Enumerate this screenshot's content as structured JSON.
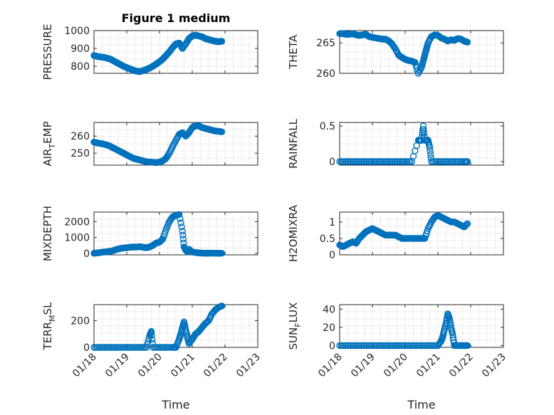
{
  "chart_data": [
    {
      "type": "scatter",
      "title": "Figure 1 medium",
      "ylabel": "PRESSURE",
      "xlabel": "",
      "xlim": [
        0,
        5
      ],
      "ylim": [
        760,
        1000
      ],
      "yticks": [
        800,
        900,
        1000
      ],
      "color": "#0072BD",
      "x": [
        0.0,
        0.1,
        0.2,
        0.3,
        0.4,
        0.5,
        0.6,
        0.7,
        0.8,
        0.9,
        1.0,
        1.1,
        1.2,
        1.3,
        1.4,
        1.5,
        1.6,
        1.7,
        1.8,
        1.9,
        2.0,
        2.1,
        2.2,
        2.3,
        2.4,
        2.5,
        2.6,
        2.7,
        2.8,
        2.9,
        3.0,
        3.1,
        3.2,
        3.3,
        3.4,
        3.5,
        3.6,
        3.7,
        3.8,
        3.9
      ],
      "y": [
        860,
        855,
        852,
        850,
        845,
        840,
        830,
        820,
        810,
        800,
        792,
        785,
        777,
        772,
        770,
        775,
        782,
        790,
        800,
        812,
        825,
        840,
        860,
        880,
        905,
        925,
        930,
        900,
        925,
        955,
        970,
        975,
        970,
        965,
        955,
        950,
        945,
        940,
        938,
        940
      ]
    },
    {
      "type": "scatter",
      "title": "",
      "ylabel": "THETA",
      "xlabel": "",
      "xlim": [
        0,
        5
      ],
      "ylim": [
        260,
        267
      ],
      "yticks": [
        260,
        265
      ],
      "color": "#0072BD",
      "x": [
        0.0,
        0.1,
        0.2,
        0.3,
        0.4,
        0.5,
        0.6,
        0.7,
        0.8,
        0.9,
        1.0,
        1.1,
        1.2,
        1.3,
        1.4,
        1.5,
        1.6,
        1.7,
        1.8,
        1.9,
        2.0,
        2.1,
        2.2,
        2.3,
        2.4,
        2.5,
        2.55,
        2.6,
        2.65,
        2.7,
        2.8,
        2.9,
        3.0,
        3.1,
        3.2,
        3.3,
        3.4,
        3.5,
        3.6,
        3.7,
        3.8,
        3.9
      ],
      "y": [
        266.5,
        266.5,
        266.4,
        266.4,
        266.5,
        266.3,
        266.2,
        266.3,
        266.4,
        266.0,
        265.9,
        265.8,
        265.7,
        265.6,
        265.6,
        265.3,
        264.8,
        264.0,
        263.0,
        262.6,
        262.3,
        262.1,
        262.0,
        261.8,
        260.0,
        261.0,
        262.0,
        263.0,
        264.0,
        265.0,
        266.0,
        266.3,
        266.2,
        265.8,
        265.6,
        265.3,
        265.5,
        265.4,
        265.7,
        265.6,
        265.3,
        265.1
      ]
    },
    {
      "type": "scatter",
      "title": "",
      "ylabel": "AIR_TEMP",
      "xlabel": "",
      "xlim": [
        0,
        5
      ],
      "ylim": [
        243,
        268
      ],
      "yticks": [
        250,
        260
      ],
      "color": "#0072BD",
      "x": [
        0.0,
        0.1,
        0.2,
        0.3,
        0.4,
        0.5,
        0.6,
        0.7,
        0.8,
        0.9,
        1.0,
        1.1,
        1.2,
        1.3,
        1.4,
        1.5,
        1.6,
        1.7,
        1.8,
        1.9,
        2.0,
        2.1,
        2.2,
        2.3,
        2.4,
        2.5,
        2.6,
        2.7,
        2.8,
        2.9,
        3.0,
        3.1,
        3.2,
        3.3,
        3.4,
        3.5,
        3.6,
        3.7,
        3.8,
        3.9
      ],
      "y": [
        256.5,
        256,
        255.7,
        255.3,
        254.8,
        254,
        253,
        252,
        251,
        250,
        249,
        248,
        247,
        246.5,
        246,
        245.5,
        245,
        244.8,
        244.7,
        244.5,
        244.8,
        245.5,
        247,
        250,
        254,
        257.5,
        261,
        262,
        260,
        262,
        265,
        266,
        266,
        265,
        264.5,
        264,
        263.5,
        263,
        262.8,
        262.5
      ]
    },
    {
      "type": "scatter",
      "title": "",
      "ylabel": "RAINFALL",
      "xlabel": "",
      "xlim": [
        0,
        5
      ],
      "ylim": [
        -0.05,
        0.55
      ],
      "yticks": [
        0,
        0.5
      ],
      "color": "#0072BD",
      "x": [
        0.0,
        0.2,
        0.4,
        0.6,
        0.8,
        1.0,
        1.2,
        1.4,
        1.6,
        1.8,
        2.0,
        2.2,
        2.4,
        2.5,
        2.55,
        2.6,
        2.65,
        2.7,
        2.75,
        2.8,
        3.0,
        3.2,
        3.4,
        3.6,
        3.8,
        3.9
      ],
      "y": [
        0,
        0,
        0,
        0,
        0,
        0,
        0,
        0,
        0,
        0,
        0,
        0,
        0.3,
        0.3,
        0.5,
        0.3,
        0.3,
        0.3,
        0.2,
        0,
        0,
        0,
        0,
        0,
        0,
        0
      ]
    },
    {
      "type": "scatter",
      "title": "",
      "ylabel": "MIXDEPTH",
      "xlabel": "",
      "xlim": [
        0,
        5
      ],
      "ylim": [
        -100,
        2600
      ],
      "yticks": [
        0,
        1000,
        2000
      ],
      "color": "#0072BD",
      "x": [
        0.0,
        0.1,
        0.2,
        0.3,
        0.4,
        0.5,
        0.6,
        0.7,
        0.8,
        0.9,
        1.0,
        1.1,
        1.2,
        1.3,
        1.4,
        1.5,
        1.6,
        1.7,
        1.8,
        1.9,
        2.0,
        2.1,
        2.2,
        2.3,
        2.4,
        2.5,
        2.6,
        2.7,
        2.75,
        2.8,
        2.85,
        2.9,
        3.0,
        3.1,
        3.2,
        3.3,
        3.4,
        3.5,
        3.6,
        3.7,
        3.8,
        3.9
      ],
      "y": [
        0,
        20,
        50,
        80,
        100,
        120,
        180,
        250,
        300,
        330,
        350,
        380,
        400,
        390,
        420,
        380,
        350,
        400,
        500,
        650,
        700,
        900,
        1500,
        2000,
        2300,
        2400,
        2450,
        1400,
        400,
        200,
        100,
        250,
        80,
        50,
        20,
        10,
        0,
        5,
        10,
        0,
        0,
        0
      ]
    },
    {
      "type": "scatter",
      "title": "",
      "ylabel": "H2OMIXRA",
      "xlabel": "",
      "xlim": [
        0,
        5
      ],
      "ylim": [
        0,
        1.3
      ],
      "yticks": [
        0,
        0.5,
        1
      ],
      "color": "#0072BD",
      "x": [
        0.0,
        0.1,
        0.2,
        0.3,
        0.4,
        0.5,
        0.6,
        0.7,
        0.8,
        0.9,
        1.0,
        1.1,
        1.2,
        1.3,
        1.4,
        1.5,
        1.6,
        1.7,
        1.8,
        1.9,
        2.0,
        2.1,
        2.2,
        2.3,
        2.4,
        2.5,
        2.6,
        2.7,
        2.8,
        2.9,
        3.0,
        3.1,
        3.2,
        3.3,
        3.4,
        3.5,
        3.6,
        3.7,
        3.8,
        3.9
      ],
      "y": [
        0.3,
        0.25,
        0.3,
        0.35,
        0.4,
        0.35,
        0.5,
        0.6,
        0.7,
        0.75,
        0.8,
        0.75,
        0.7,
        0.65,
        0.6,
        0.6,
        0.6,
        0.6,
        0.55,
        0.5,
        0.5,
        0.5,
        0.5,
        0.5,
        0.5,
        0.5,
        0.5,
        0.8,
        1.0,
        1.15,
        1.2,
        1.15,
        1.1,
        1.05,
        1.0,
        1.0,
        0.95,
        0.9,
        0.85,
        0.95
      ]
    },
    {
      "type": "scatter",
      "title": "",
      "ylabel": "TERR_MSL",
      "xlabel": "Time",
      "xlim": [
        0,
        5
      ],
      "xticklabels": [
        "01/18",
        "01/19",
        "01/20",
        "01/21",
        "01/22",
        "01/23"
      ],
      "ylim": [
        0,
        320
      ],
      "yticks": [
        0,
        200
      ],
      "color": "#0072BD",
      "x": [
        0.0,
        0.2,
        0.4,
        0.6,
        0.8,
        1.0,
        1.2,
        1.4,
        1.6,
        1.7,
        1.75,
        1.8,
        2.0,
        2.2,
        2.4,
        2.5,
        2.6,
        2.65,
        2.7,
        2.75,
        2.8,
        2.85,
        2.9,
        3.0,
        3.1,
        3.2,
        3.3,
        3.4,
        3.5,
        3.6,
        3.7,
        3.8,
        3.9
      ],
      "y": [
        0,
        0,
        0,
        0,
        0,
        0,
        0,
        0,
        0,
        90,
        120,
        0,
        0,
        0,
        0,
        0,
        60,
        100,
        150,
        190,
        130,
        80,
        30,
        60,
        100,
        120,
        150,
        180,
        200,
        250,
        280,
        300,
        310
      ]
    },
    {
      "type": "scatter",
      "title": "",
      "ylabel": "SUN_FLUX",
      "xlabel": "Time",
      "xlim": [
        0,
        5
      ],
      "xticklabels": [
        "01/18",
        "01/19",
        "01/20",
        "01/21",
        "01/22",
        "01/23"
      ],
      "ylim": [
        -2,
        45
      ],
      "yticks": [
        0,
        20,
        40
      ],
      "color": "#0072BD",
      "x": [
        0.0,
        0.2,
        0.4,
        0.6,
        0.8,
        1.0,
        1.2,
        1.4,
        1.6,
        1.8,
        2.0,
        2.2,
        2.4,
        2.6,
        2.8,
        3.0,
        3.1,
        3.15,
        3.2,
        3.25,
        3.3,
        3.35,
        3.4,
        3.45,
        3.5,
        3.6,
        3.7,
        3.8,
        3.9
      ],
      "y": [
        0,
        0,
        0,
        0,
        0,
        0,
        0,
        0,
        0,
        0,
        0,
        0,
        0,
        0,
        0,
        0,
        5,
        10,
        18,
        25,
        35,
        30,
        20,
        12,
        0,
        0,
        0,
        0,
        0
      ]
    }
  ]
}
